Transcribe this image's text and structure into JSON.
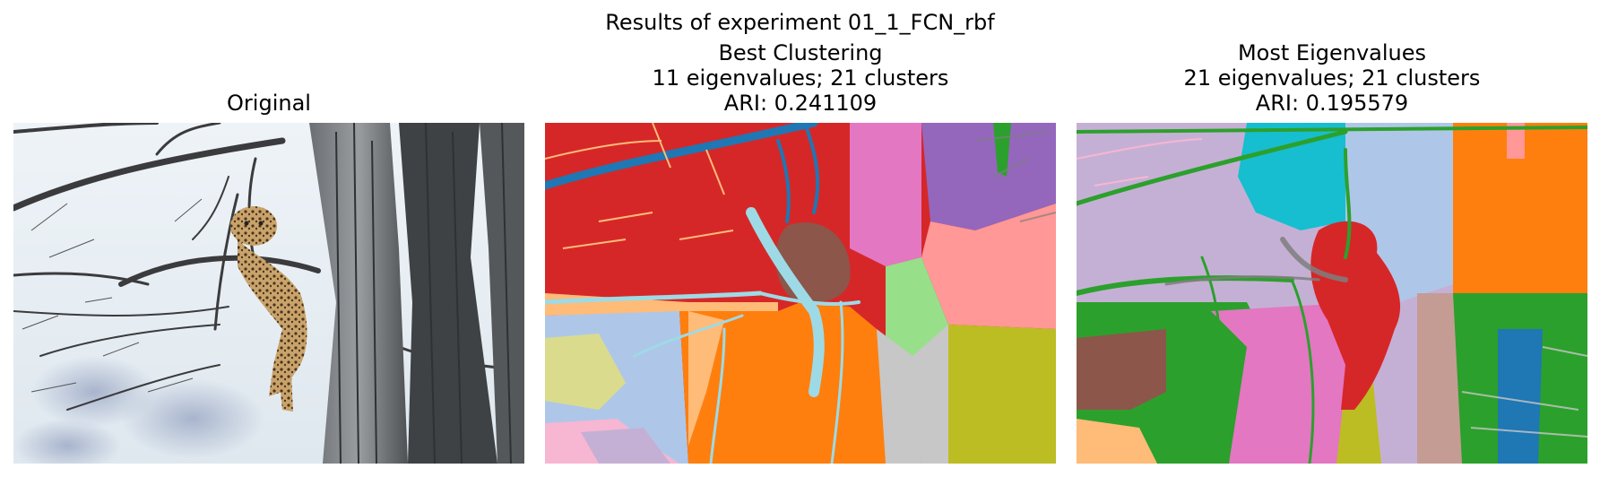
{
  "figure": {
    "suptitle": "Results of experiment 01_1_FCN_rbf"
  },
  "panels": [
    {
      "title_lines": [
        "Original"
      ]
    },
    {
      "title_lines": [
        "Best Clustering",
        "11 eigenvalues; 21 clusters",
        "ARI: 0.241109"
      ]
    },
    {
      "title_lines": [
        "Most Eigenvalues",
        "21 eigenvalues; 21 clusters",
        "ARI: 0.195579"
      ]
    }
  ],
  "colors": {
    "tab20_blue": "#1f77b4",
    "tab20_lightblue": "#aec7e8",
    "tab20_orange": "#ff7f0e",
    "tab20_lightorange": "#ffbb78",
    "tab20_green": "#2ca02c",
    "tab20_lightgreen": "#98df8a",
    "tab20_red": "#d62728",
    "tab20_pink_red": "#ff9896",
    "tab20_purple": "#9467bd",
    "tab20_lightpurple": "#c5b0d5",
    "tab20_brown": "#8c564b",
    "tab20_lightbrown": "#c49c94",
    "tab20_pink": "#e377c2",
    "tab20_lightpink": "#f7b6d2",
    "tab20_gray": "#7f7f7f",
    "tab20_lightgray": "#c7c7c7",
    "tab20_olive": "#bcbd22",
    "tab20_lightolive": "#dbdb8d",
    "tab20_cyan": "#17becf",
    "tab20_lightcyan": "#9edae5"
  }
}
